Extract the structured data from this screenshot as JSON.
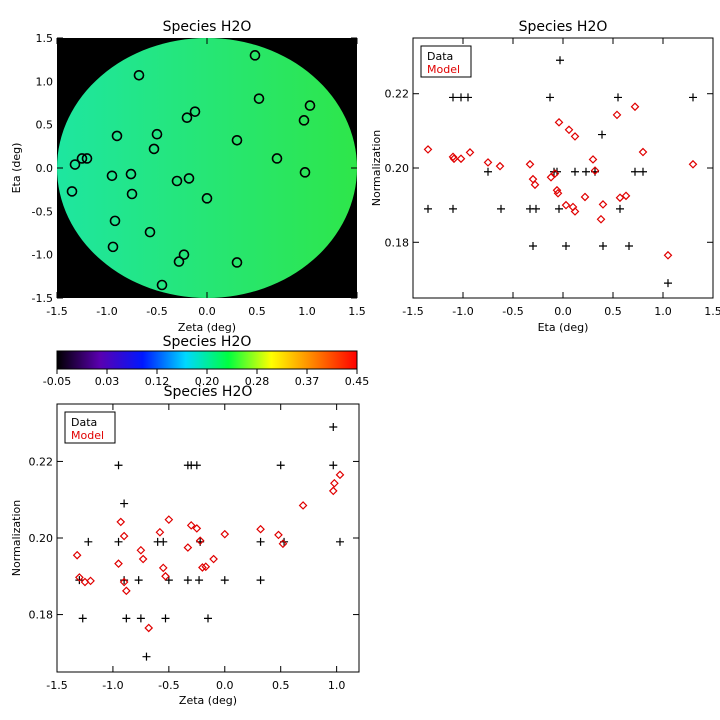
{
  "chart_data": [
    {
      "type": "heatmap",
      "title": "Species H2O",
      "xlabel": "Zeta (deg)",
      "ylabel": "Eta (deg)",
      "xlim": [
        -1.5,
        1.5
      ],
      "ylim": [
        -1.5,
        1.5
      ],
      "xticks": [
        "-1.5",
        "-1.0",
        "-0.5",
        "0.0",
        "0.5",
        "1.0",
        "1.5"
      ],
      "yticks": [
        "-1.5",
        "-1.0",
        "-0.5",
        "0.0",
        "0.5",
        "1.0",
        "1.5"
      ],
      "background_color": "#000000",
      "field_colors": [
        "#1ee6a0",
        "#2ee64a"
      ],
      "field_shape": "disc",
      "field_radius": 1.5,
      "marker": "circle",
      "points": [
        {
          "x": -1.35,
          "y": -0.27
        },
        {
          "x": -1.32,
          "y": 0.04
        },
        {
          "x": -1.25,
          "y": 0.11
        },
        {
          "x": -1.2,
          "y": 0.11
        },
        {
          "x": -0.95,
          "y": -0.09
        },
        {
          "x": -0.94,
          "y": -0.91
        },
        {
          "x": -0.92,
          "y": -0.61
        },
        {
          "x": -0.9,
          "y": 0.37
        },
        {
          "x": -0.76,
          "y": -0.07
        },
        {
          "x": -0.75,
          "y": -0.3
        },
        {
          "x": -0.68,
          "y": 1.07
        },
        {
          "x": -0.57,
          "y": -0.74
        },
        {
          "x": -0.53,
          "y": 0.22
        },
        {
          "x": -0.5,
          "y": 0.39
        },
        {
          "x": -0.45,
          "y": -1.35
        },
        {
          "x": -0.3,
          "y": -0.15
        },
        {
          "x": -0.28,
          "y": -1.08
        },
        {
          "x": -0.23,
          "y": -1.0
        },
        {
          "x": -0.2,
          "y": 0.58
        },
        {
          "x": -0.18,
          "y": -0.12
        },
        {
          "x": -0.12,
          "y": 0.65
        },
        {
          "x": 0.0,
          "y": -0.35
        },
        {
          "x": 0.3,
          "y": 0.32
        },
        {
          "x": 0.3,
          "y": -1.09
        },
        {
          "x": 0.48,
          "y": 1.3
        },
        {
          "x": 0.52,
          "y": 0.8
        },
        {
          "x": 0.7,
          "y": 0.11
        },
        {
          "x": 0.97,
          "y": 0.55
        },
        {
          "x": 0.98,
          "y": -0.05
        },
        {
          "x": 1.03,
          "y": 0.72
        }
      ]
    },
    {
      "type": "scatter",
      "title": "Species H2O",
      "xlabel": "Eta (deg)",
      "ylabel": "Normalization",
      "xlim": [
        -1.5,
        1.5
      ],
      "ylim": [
        0.165,
        0.235
      ],
      "xticks": [
        "-1.5",
        "-1.0",
        "-0.5",
        "0.0",
        "0.5",
        "1.0",
        "1.5"
      ],
      "yticks": [
        {
          "v": 0.18,
          "label": "0.18"
        },
        {
          "v": 0.2,
          "label": "0.20"
        },
        {
          "v": 0.22,
          "label": "0.22"
        }
      ],
      "legend": {
        "entries": [
          {
            "label": "Data",
            "color": "#000000"
          },
          {
            "label": "Model",
            "color": "#e00000"
          }
        ],
        "placement": "top-left"
      },
      "series": [
        {
          "name": "Data",
          "marker": "plus",
          "color": "#000000",
          "points": [
            {
              "x": -1.35,
              "y": 0.189
            },
            {
              "x": -1.1,
              "y": 0.189
            },
            {
              "x": -1.1,
              "y": 0.219
            },
            {
              "x": -1.02,
              "y": 0.219
            },
            {
              "x": -0.95,
              "y": 0.219
            },
            {
              "x": -0.75,
              "y": 0.199
            },
            {
              "x": -0.62,
              "y": 0.189
            },
            {
              "x": -0.33,
              "y": 0.189
            },
            {
              "x": -0.27,
              "y": 0.189
            },
            {
              "x": -0.3,
              "y": 0.179
            },
            {
              "x": -0.13,
              "y": 0.219
            },
            {
              "x": -0.09,
              "y": 0.199
            },
            {
              "x": -0.06,
              "y": 0.199
            },
            {
              "x": -0.04,
              "y": 0.189
            },
            {
              "x": -0.03,
              "y": 0.229
            },
            {
              "x": 0.03,
              "y": 0.179
            },
            {
              "x": 0.12,
              "y": 0.199
            },
            {
              "x": 0.23,
              "y": 0.199
            },
            {
              "x": 0.32,
              "y": 0.199
            },
            {
              "x": 0.39,
              "y": 0.209
            },
            {
              "x": 0.4,
              "y": 0.179
            },
            {
              "x": 0.55,
              "y": 0.219
            },
            {
              "x": 0.57,
              "y": 0.189
            },
            {
              "x": 0.66,
              "y": 0.179
            },
            {
              "x": 0.72,
              "y": 0.199
            },
            {
              "x": 0.8,
              "y": 0.199
            },
            {
              "x": 1.05,
              "y": 0.169
            },
            {
              "x": 1.3,
              "y": 0.219
            }
          ]
        },
        {
          "name": "Model",
          "marker": "diamond",
          "color": "#e00000",
          "points": [
            {
              "x": -1.35,
              "y": 0.205
            },
            {
              "x": -1.1,
              "y": 0.203
            },
            {
              "x": -1.09,
              "y": 0.2025
            },
            {
              "x": -1.02,
              "y": 0.2025
            },
            {
              "x": -0.93,
              "y": 0.2042
            },
            {
              "x": -0.75,
              "y": 0.2015
            },
            {
              "x": -0.63,
              "y": 0.2005
            },
            {
              "x": -0.33,
              "y": 0.201
            },
            {
              "x": -0.3,
              "y": 0.197
            },
            {
              "x": -0.28,
              "y": 0.1955
            },
            {
              "x": -0.12,
              "y": 0.1975
            },
            {
              "x": -0.08,
              "y": 0.1985
            },
            {
              "x": -0.06,
              "y": 0.194
            },
            {
              "x": -0.05,
              "y": 0.1932
            },
            {
              "x": -0.04,
              "y": 0.2123
            },
            {
              "x": 0.03,
              "y": 0.19
            },
            {
              "x": 0.06,
              "y": 0.2103
            },
            {
              "x": 0.1,
              "y": 0.1895
            },
            {
              "x": 0.12,
              "y": 0.2085
            },
            {
              "x": 0.12,
              "y": 0.1883
            },
            {
              "x": 0.22,
              "y": 0.1922
            },
            {
              "x": 0.3,
              "y": 0.2023
            },
            {
              "x": 0.32,
              "y": 0.1993
            },
            {
              "x": 0.38,
              "y": 0.1862
            },
            {
              "x": 0.4,
              "y": 0.1902
            },
            {
              "x": 0.54,
              "y": 0.2143
            },
            {
              "x": 0.57,
              "y": 0.192
            },
            {
              "x": 0.63,
              "y": 0.1925
            },
            {
              "x": 0.72,
              "y": 0.2165
            },
            {
              "x": 0.8,
              "y": 0.2043
            },
            {
              "x": 1.05,
              "y": 0.1765
            },
            {
              "x": 1.3,
              "y": 0.201
            }
          ]
        }
      ]
    },
    {
      "type": "colorbar",
      "title": "Species H2O",
      "range": [
        -0.05,
        0.45
      ],
      "tick_labels": [
        "-0.05",
        "0.03",
        "0.12",
        "0.20",
        "0.28",
        "0.37",
        "0.45"
      ],
      "colors": [
        "#000000",
        "#5a00b0",
        "#0018ff",
        "#00d8ff",
        "#00ff40",
        "#ffff00",
        "#ff8000",
        "#ff0000"
      ]
    },
    {
      "type": "scatter",
      "title": "Species H2O",
      "xlabel": "Zeta (deg)",
      "ylabel": "Normalization",
      "xlim": [
        -1.5,
        1.2
      ],
      "ylim": [
        0.165,
        0.235
      ],
      "xticks": [
        {
          "v": -1.5,
          "label": "-1.5"
        },
        {
          "v": -1.0,
          "label": "-1.0"
        },
        {
          "v": -0.5,
          "label": "-0.5"
        },
        {
          "v": 0.0,
          "label": "0.0"
        },
        {
          "v": 0.5,
          "label": "0.5"
        },
        {
          "v": 1.0,
          "label": "1.0"
        }
      ],
      "yticks": [
        {
          "v": 0.18,
          "label": "0.18"
        },
        {
          "v": 0.2,
          "label": "0.20"
        },
        {
          "v": 0.22,
          "label": "0.22"
        }
      ],
      "legend": {
        "entries": [
          {
            "label": "Data",
            "color": "#000000"
          },
          {
            "label": "Model",
            "color": "#e00000"
          }
        ],
        "placement": "top-left"
      },
      "series": [
        {
          "name": "Data",
          "marker": "plus",
          "color": "#000000",
          "points": [
            {
              "x": -1.3,
              "y": 0.189
            },
            {
              "x": -1.27,
              "y": 0.179
            },
            {
              "x": -1.22,
              "y": 0.199
            },
            {
              "x": -0.95,
              "y": 0.219
            },
            {
              "x": -0.95,
              "y": 0.199
            },
            {
              "x": -0.9,
              "y": 0.209
            },
            {
              "x": -0.9,
              "y": 0.189
            },
            {
              "x": -0.88,
              "y": 0.179
            },
            {
              "x": -0.77,
              "y": 0.189
            },
            {
              "x": -0.75,
              "y": 0.179
            },
            {
              "x": -0.7,
              "y": 0.169
            },
            {
              "x": -0.6,
              "y": 0.199
            },
            {
              "x": -0.55,
              "y": 0.199
            },
            {
              "x": -0.5,
              "y": 0.189
            },
            {
              "x": -0.53,
              "y": 0.179
            },
            {
              "x": -0.33,
              "y": 0.219
            },
            {
              "x": -0.3,
              "y": 0.219
            },
            {
              "x": -0.25,
              "y": 0.219
            },
            {
              "x": -0.33,
              "y": 0.189
            },
            {
              "x": -0.23,
              "y": 0.189
            },
            {
              "x": -0.22,
              "y": 0.199
            },
            {
              "x": -0.15,
              "y": 0.179
            },
            {
              "x": 0.0,
              "y": 0.189
            },
            {
              "x": 0.32,
              "y": 0.199
            },
            {
              "x": 0.32,
              "y": 0.189
            },
            {
              "x": 0.5,
              "y": 0.219
            },
            {
              "x": 0.53,
              "y": 0.199
            },
            {
              "x": 0.97,
              "y": 0.229
            },
            {
              "x": 0.97,
              "y": 0.219
            },
            {
              "x": 1.03,
              "y": 0.199
            }
          ]
        },
        {
          "name": "Model",
          "marker": "diamond",
          "color": "#e00000",
          "points": [
            {
              "x": -1.32,
              "y": 0.1955
            },
            {
              "x": -1.3,
              "y": 0.1897
            },
            {
              "x": -1.25,
              "y": 0.1885
            },
            {
              "x": -1.2,
              "y": 0.1888
            },
            {
              "x": -0.95,
              "y": 0.1933
            },
            {
              "x": -0.93,
              "y": 0.2042
            },
            {
              "x": -0.9,
              "y": 0.2005
            },
            {
              "x": -0.9,
              "y": 0.1885
            },
            {
              "x": -0.88,
              "y": 0.1862
            },
            {
              "x": -0.75,
              "y": 0.1968
            },
            {
              "x": -0.73,
              "y": 0.1945
            },
            {
              "x": -0.68,
              "y": 0.1765
            },
            {
              "x": -0.58,
              "y": 0.2015
            },
            {
              "x": -0.55,
              "y": 0.1922
            },
            {
              "x": -0.53,
              "y": 0.19
            },
            {
              "x": -0.5,
              "y": 0.2048
            },
            {
              "x": -0.33,
              "y": 0.1975
            },
            {
              "x": -0.3,
              "y": 0.2033
            },
            {
              "x": -0.25,
              "y": 0.2025
            },
            {
              "x": -0.22,
              "y": 0.1993
            },
            {
              "x": -0.2,
              "y": 0.1923
            },
            {
              "x": -0.17,
              "y": 0.1925
            },
            {
              "x": -0.1,
              "y": 0.1945
            },
            {
              "x": 0.0,
              "y": 0.201
            },
            {
              "x": 0.32,
              "y": 0.2023
            },
            {
              "x": 0.48,
              "y": 0.2008
            },
            {
              "x": 0.52,
              "y": 0.1985
            },
            {
              "x": 0.7,
              "y": 0.2085
            },
            {
              "x": 0.97,
              "y": 0.2123
            },
            {
              "x": 0.98,
              "y": 0.2143
            },
            {
              "x": 1.03,
              "y": 0.2165
            }
          ]
        }
      ]
    }
  ]
}
